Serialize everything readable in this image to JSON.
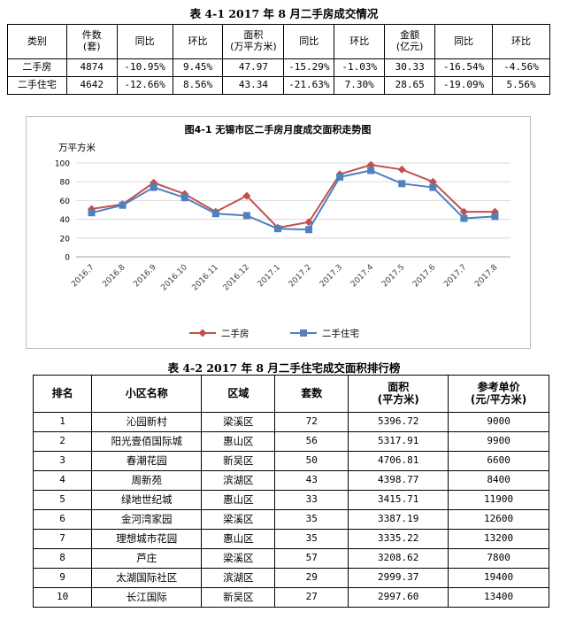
{
  "table1": {
    "title": "表 4-1  2017 年 8 月二手房成交情况",
    "headers": [
      "类别",
      "件数\n(套)",
      "同比",
      "环比",
      "面积\n(万平方米)",
      "同比",
      "环比",
      "金额\n(亿元)",
      "同比",
      "环比"
    ],
    "rows": [
      [
        "二手房",
        "4874",
        "-10.95%",
        "9.45%",
        "47.97",
        "-15.29%",
        "-1.03%",
        "30.33",
        "-16.54%",
        "-4.56%"
      ],
      [
        "二手住宅",
        "4642",
        "-12.66%",
        "8.56%",
        "43.34",
        "-21.63%",
        "7.30%",
        "28.65",
        "-19.09%",
        "5.56%"
      ]
    ]
  },
  "chart_data": {
    "type": "line",
    "title": "图4-1  无锡市区二手房月度成交面积走势图",
    "ylabel": "万平方米",
    "xlabel": "",
    "ylim": [
      0,
      100
    ],
    "yticks": [
      0,
      20,
      40,
      60,
      80,
      100
    ],
    "grid": true,
    "legend": "bottom",
    "categories": [
      "2016.7",
      "2016.8",
      "2016.9",
      "2016.10",
      "2016.11",
      "2016.12",
      "2017.1",
      "2017.2",
      "2017.3",
      "2017.4",
      "2017.5",
      "2017.6",
      "2017.7",
      "2017.8"
    ],
    "series": [
      {
        "name": "二手房",
        "color": "#c0504d",
        "marker": "diamond",
        "values": [
          51,
          56,
          79,
          67,
          48,
          65,
          31,
          37,
          88,
          98,
          93,
          80,
          48,
          48
        ]
      },
      {
        "name": "二手住宅",
        "color": "#4f81bd",
        "marker": "square",
        "values": [
          47,
          55,
          74,
          63,
          46,
          44,
          30,
          29,
          85,
          92,
          78,
          74,
          41,
          43
        ]
      }
    ]
  },
  "table2": {
    "title": "表 4-2   2017 年 8 月二手住宅成交面积排行榜",
    "headers": [
      "排名",
      "小区名称",
      "区域",
      "套数",
      "面积\n(平方米)",
      "参考单价\n(元/平方米)"
    ],
    "rows": [
      [
        "1",
        "沁园新村",
        "梁溪区",
        "72",
        "5396.72",
        "9000"
      ],
      [
        "2",
        "阳光壹佰国际城",
        "惠山区",
        "56",
        "5317.91",
        "9900"
      ],
      [
        "3",
        "春潮花园",
        "新吴区",
        "50",
        "4706.81",
        "6600"
      ],
      [
        "4",
        "周新苑",
        "滨湖区",
        "43",
        "4398.77",
        "8400"
      ],
      [
        "5",
        "绿地世纪城",
        "惠山区",
        "33",
        "3415.71",
        "11900"
      ],
      [
        "6",
        "金河湾家园",
        "梁溪区",
        "35",
        "3387.19",
        "12600"
      ],
      [
        "7",
        "理想城市花园",
        "惠山区",
        "35",
        "3335.22",
        "13200"
      ],
      [
        "8",
        "芦庄",
        "梁溪区",
        "57",
        "3208.62",
        "7800"
      ],
      [
        "9",
        "太湖国际社区",
        "滨湖区",
        "29",
        "2999.37",
        "19400"
      ],
      [
        "10",
        "长江国际",
        "新吴区",
        "27",
        "2997.60",
        "13400"
      ]
    ]
  }
}
